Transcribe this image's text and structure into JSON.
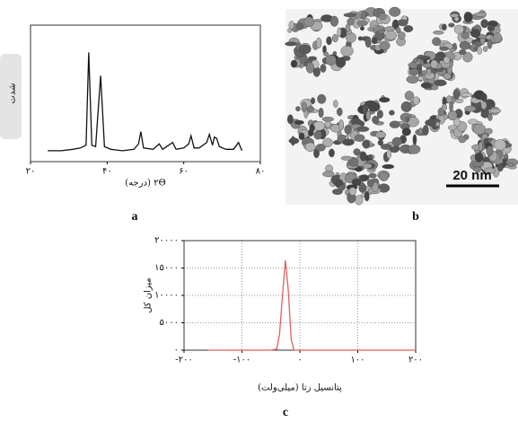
{
  "chart_data": [
    {
      "type": "line",
      "xlabel": "۲Θ (درجه)",
      "ylabel": "شدت",
      "x": [
        24.5,
        28,
        31,
        33,
        34.5,
        35.2,
        36,
        37,
        38.3,
        39.3,
        41,
        44,
        47,
        48.2,
        48.8,
        49.5,
        52,
        53.6,
        54.5,
        57.1,
        58,
        60,
        61.3,
        61.9,
        62.7,
        64,
        66.0,
        66.7,
        67.5,
        68.0,
        68.6,
        69.3,
        71,
        73,
        74.3,
        75.2
      ],
      "values": [
        8,
        8,
        9,
        10,
        12,
        80,
        12,
        11,
        63,
        11,
        9,
        8,
        9,
        13,
        22,
        10,
        9,
        13,
        9,
        14,
        9,
        10,
        13,
        19,
        10,
        10,
        14,
        20,
        12,
        18,
        17,
        11,
        9,
        9,
        14,
        8
      ],
      "color": "#111111",
      "xlim": [
        20,
        80
      ],
      "ylim": [
        0,
        100
      ],
      "xticks": [
        {
          "value": 20,
          "label": "۲۰"
        },
        {
          "value": 40,
          "label": "۴۰"
        },
        {
          "value": 60,
          "label": "۶۰"
        },
        {
          "value": 80,
          "label": "۸۰"
        }
      ],
      "grid": false
    },
    {
      "type": "line",
      "xlabel": "پتانسیل زتا (میلی‌ولت)",
      "ylabel": "میزان کل",
      "x": [
        -158,
        -50,
        -40,
        -35,
        -30,
        -25,
        -20,
        -15,
        -10,
        0,
        200
      ],
      "values": [
        0,
        0,
        200,
        3000,
        10000,
        16400,
        11000,
        2000,
        0,
        0,
        0
      ],
      "color": "#e06060",
      "xlim": [
        -200,
        200
      ],
      "ylim": [
        0,
        20000
      ],
      "xticks": [
        {
          "value": -200,
          "label": "-۲۰۰"
        },
        {
          "value": -100,
          "label": "-۱۰۰"
        },
        {
          "value": 0,
          "label": "۰"
        },
        {
          "value": 100,
          "label": "۱۰۰"
        },
        {
          "value": 200,
          "label": "۲۰۰"
        }
      ],
      "yticks": [
        {
          "value": 0,
          "label": "۰"
        },
        {
          "value": 5000,
          "label": "۵۰۰۰"
        },
        {
          "value": 10000,
          "label": "۱۰۰۰۰"
        },
        {
          "value": 15000,
          "label": "۱۵۰۰۰"
        },
        {
          "value": 20000,
          "label": "۲۰۰۰۰"
        }
      ],
      "grid": true
    }
  ],
  "image": {
    "scale_bar": "20 nm"
  },
  "panel_labels": [
    "a",
    "b",
    "c"
  ]
}
